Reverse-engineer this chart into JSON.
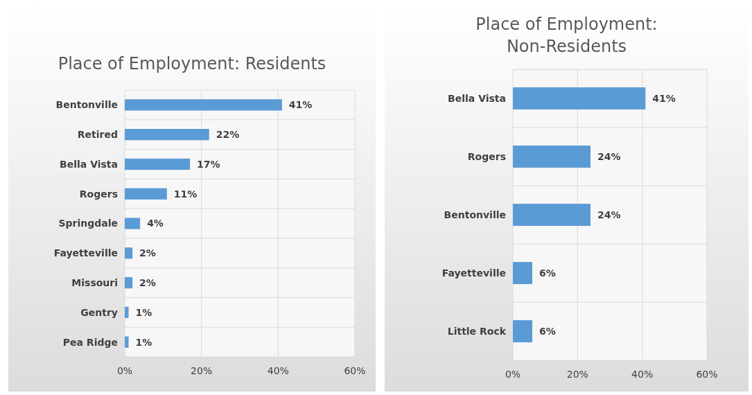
{
  "chart_data": [
    {
      "type": "bar",
      "orientation": "horizontal",
      "title": "Place of Employment: Residents",
      "categories": [
        "Bentonville",
        "Retired",
        "Bella Vista",
        "Rogers",
        "Springdale",
        "Fayetteville",
        "Missouri",
        "Gentry",
        "Pea Ridge"
      ],
      "values": [
        41,
        22,
        17,
        11,
        4,
        2,
        2,
        1,
        1
      ],
      "value_labels": [
        "41%",
        "22%",
        "17%",
        "11%",
        "4%",
        "2%",
        "2%",
        "1%",
        "1%"
      ],
      "color": "#5b9bd5",
      "xlim": [
        0,
        60
      ],
      "xticks": [
        {
          "value": 0,
          "label": "0%"
        },
        {
          "value": 20,
          "label": "20%"
        },
        {
          "value": 40,
          "label": "40%"
        },
        {
          "value": 60,
          "label": "60%"
        }
      ],
      "grid": true
    },
    {
      "type": "bar",
      "orientation": "horizontal",
      "title": "Place of Employment: Non-Residents",
      "categories": [
        "Bella Vista",
        "Rogers",
        "Bentonville",
        "Fayetteville",
        "Little Rock"
      ],
      "values": [
        41,
        24,
        24,
        6,
        6
      ],
      "value_labels": [
        "41%",
        "24%",
        "24%",
        "6%",
        "6%"
      ],
      "color": "#5b9bd5",
      "xlim": [
        0,
        60
      ],
      "xticks": [
        {
          "value": 0,
          "label": "0%"
        },
        {
          "value": 20,
          "label": "20%"
        },
        {
          "value": 40,
          "label": "40%"
        },
        {
          "value": 60,
          "label": "60%"
        }
      ],
      "grid": true
    }
  ]
}
